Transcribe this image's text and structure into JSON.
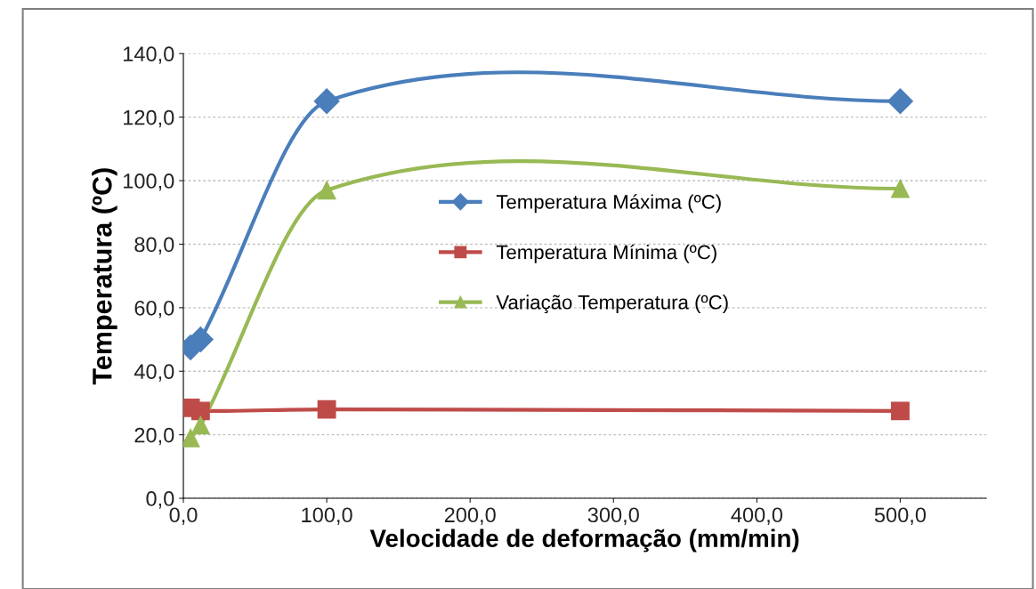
{
  "chart_data": {
    "type": "line",
    "xlabel": "Velocidade de deformação (mm/min)",
    "ylabel": "Temperatura (ºC)",
    "x": [
      5,
      12,
      100,
      500
    ],
    "series": [
      {
        "name": "Temperatura Máxima (ºC)",
        "color": "#4a7ebb",
        "marker": "diamond",
        "values": [
          47.5,
          50,
          125,
          125
        ]
      },
      {
        "name": "Temperatura Mínima (ºC)",
        "color": "#be4b48",
        "marker": "square",
        "values": [
          28.5,
          27.5,
          28,
          27.5
        ]
      },
      {
        "name": "Variação Temperatura (ºC)",
        "color": "#98b954",
        "marker": "triangle",
        "values": [
          19,
          23,
          97,
          97.5
        ]
      }
    ],
    "xlim": [
      0,
      560
    ],
    "ylim": [
      0,
      140
    ],
    "xticks": [
      {
        "value": 0,
        "label": "0,0"
      },
      {
        "value": 100,
        "label": "100,0"
      },
      {
        "value": 200,
        "label": "200,0"
      },
      {
        "value": 300,
        "label": "300,0"
      },
      {
        "value": 400,
        "label": "400,0"
      },
      {
        "value": 500,
        "label": "500,0"
      }
    ],
    "yticks": [
      {
        "value": 0,
        "label": "0,0"
      },
      {
        "value": 20,
        "label": "20,0"
      },
      {
        "value": 40,
        "label": "40,0"
      },
      {
        "value": 60,
        "label": "60,0"
      },
      {
        "value": 80,
        "label": "80,0"
      },
      {
        "value": 100,
        "label": "100,0"
      },
      {
        "value": 120,
        "label": "120,0"
      },
      {
        "value": 140,
        "label": "140,0"
      }
    ],
    "grid": "y",
    "legend": "center",
    "line_style": "solid"
  }
}
